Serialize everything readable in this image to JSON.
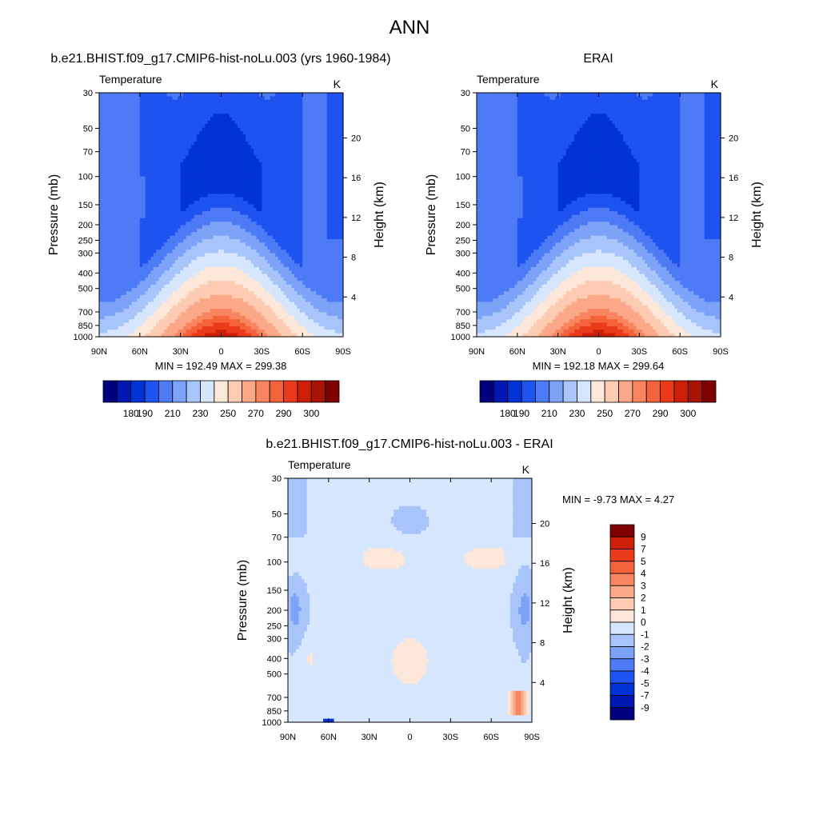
{
  "main_title": "ANN",
  "colors": {
    "temp_levels": [
      "#00007f",
      "#0017b1",
      "#0033d6",
      "#1f53f0",
      "#4c7bf5",
      "#7ca3f8",
      "#a8c5fb",
      "#d6e6fd",
      "#fde7d8",
      "#fccbb1",
      "#fba888",
      "#f98560",
      "#f4623b",
      "#ea3a19",
      "#cd1e08",
      "#a81306",
      "#7e0000"
    ],
    "diff_levels": [
      "#00007f",
      "#0017b1",
      "#0033d6",
      "#1f53f0",
      "#4c7bf5",
      "#7ca3f8",
      "#a8c5fb",
      "#d6e6fd",
      "#fde7d8",
      "#fccbb1",
      "#fba888",
      "#f98560",
      "#f4623b",
      "#ea3a19",
      "#cd1e08",
      "#7e0000"
    ]
  },
  "chart_data": [
    {
      "type": "heatmap",
      "title": "b.e21.BHIST.f09_g17.CMIP6-hist-noLu.003 (yrs 1960-1984)",
      "left_label": "Temperature",
      "right_label": "K",
      "ylabel": "Pressure (mb)",
      "ylabel_right": "Height (km)",
      "x_ticks": [
        "90N",
        "60N",
        "30N",
        "0",
        "30S",
        "60S",
        "90S"
      ],
      "y_ticks": [
        "30",
        "50",
        "70",
        "100",
        "150",
        "200",
        "250",
        "300",
        "400",
        "500",
        "700",
        "850",
        "1000"
      ],
      "y_right_ticks": [
        "4",
        "8",
        "12",
        "16",
        "20"
      ],
      "y_scale": "log",
      "ylim": [
        1000,
        30
      ],
      "xlim": [
        90,
        -90
      ],
      "stats": "MIN = 192.49  MAX = 299.38",
      "min": 192.49,
      "max": 299.38,
      "colorbar_labels": [
        "180",
        "190",
        "210",
        "230",
        "250",
        "270",
        "290",
        "300"
      ]
    },
    {
      "type": "heatmap",
      "title": "ERAI",
      "left_label": "Temperature",
      "right_label": "K",
      "ylabel": "Pressure (mb)",
      "ylabel_right": "Height (km)",
      "x_ticks": [
        "90N",
        "60N",
        "30N",
        "0",
        "30S",
        "60S",
        "90S"
      ],
      "y_ticks": [
        "30",
        "50",
        "70",
        "100",
        "150",
        "200",
        "250",
        "300",
        "400",
        "500",
        "700",
        "850",
        "1000"
      ],
      "y_right_ticks": [
        "4",
        "8",
        "12",
        "16",
        "20"
      ],
      "y_scale": "log",
      "ylim": [
        1000,
        30
      ],
      "xlim": [
        90,
        -90
      ],
      "stats": "MIN = 192.18  MAX = 299.64",
      "min": 192.18,
      "max": 299.64,
      "colorbar_labels": [
        "180",
        "190",
        "210",
        "230",
        "250",
        "270",
        "290",
        "300"
      ]
    },
    {
      "type": "heatmap",
      "title": "b.e21.BHIST.f09_g17.CMIP6-hist-noLu.003 - ERAI",
      "left_label": "Temperature",
      "right_label": "K",
      "ylabel": "Pressure (mb)",
      "ylabel_right": "Height (km)",
      "x_ticks": [
        "90N",
        "60N",
        "30N",
        "0",
        "30S",
        "60S",
        "90S"
      ],
      "y_ticks": [
        "30",
        "50",
        "70",
        "100",
        "150",
        "200",
        "250",
        "300",
        "400",
        "500",
        "700",
        "850",
        "1000"
      ],
      "y_right_ticks": [
        "4",
        "8",
        "12",
        "16",
        "20"
      ],
      "y_scale": "log",
      "ylim": [
        1000,
        30
      ],
      "xlim": [
        90,
        -90
      ],
      "stats": "MIN =  -9.73  MAX =   4.27",
      "min": -9.73,
      "max": 4.27,
      "colorbar_labels": [
        "9",
        "7",
        "5",
        "4",
        "3",
        "2",
        "1",
        "0",
        "-1",
        "-2",
        "-3",
        "-4",
        "-5",
        "-7",
        "-9"
      ]
    }
  ]
}
